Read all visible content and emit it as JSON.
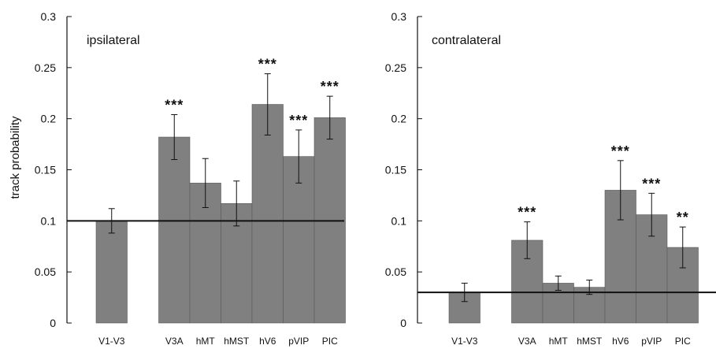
{
  "chart_data": [
    {
      "type": "bar",
      "title": "ipsilateral",
      "ylabel": "track probability",
      "ylim": [
        0,
        0.3
      ],
      "yticks": [
        "0",
        "0.05",
        "0.1",
        "0.15",
        "0.2",
        "0.25",
        "0.3"
      ],
      "categories": [
        "V1-V3",
        "V3A",
        "hMT",
        "hMST",
        "hV6",
        "pVIP",
        "PIC"
      ],
      "values": [
        0.1,
        0.182,
        0.137,
        0.117,
        0.214,
        0.163,
        0.201
      ],
      "errors": [
        0.012,
        0.022,
        0.024,
        0.022,
        0.03,
        0.026,
        0.021
      ],
      "significance": [
        "",
        "***",
        "",
        "",
        "***",
        "***",
        "***"
      ],
      "reference_line": 0.1,
      "bar_color": "#808080"
    },
    {
      "type": "bar",
      "title": "contralateral",
      "ylabel": "",
      "ylim": [
        0,
        0.3
      ],
      "yticks": [
        "0",
        "0.05",
        "0.1",
        "0.15",
        "0.2",
        "0.25",
        "0.3"
      ],
      "categories": [
        "V1-V3",
        "V3A",
        "hMT",
        "hMST",
        "hV6",
        "pVIP",
        "PIC"
      ],
      "values": [
        0.03,
        0.081,
        0.039,
        0.035,
        0.13,
        0.106,
        0.074
      ],
      "errors": [
        0.009,
        0.018,
        0.007,
        0.007,
        0.029,
        0.021,
        0.02
      ],
      "significance": [
        "",
        "***",
        "",
        "",
        "***",
        "***",
        "**"
      ],
      "reference_line": 0.03,
      "bar_color": "#808080"
    }
  ]
}
